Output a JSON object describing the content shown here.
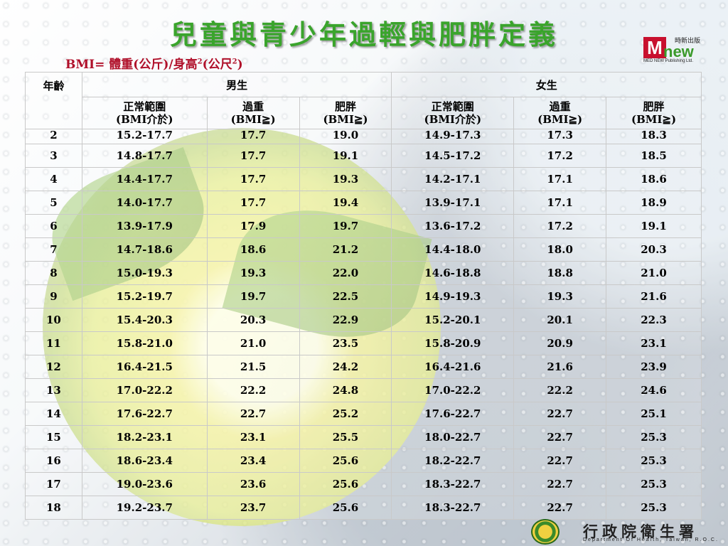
{
  "title": "兒童與青少年過輕與肥胖定義",
  "formula": {
    "text": "BMI= 體重(公斤)/身高",
    "sup1": "2",
    "mid": "(公尺",
    "sup2": "2",
    "end": ")"
  },
  "logo": {
    "letter": "M",
    "word": "new",
    "cn": "時新出版",
    "en": "MED NEW  Publishing Ltd."
  },
  "table": {
    "age_header": "年齡",
    "boys_header": "男生",
    "girls_header": "女生",
    "subheaders": [
      {
        "line1": "正常範圍",
        "line2": "(BMI介於)"
      },
      {
        "line1": "過重",
        "line2": "(BMI≧)"
      },
      {
        "line1": "肥胖",
        "line2": "(BMI≧)"
      },
      {
        "line1": "正常範圍",
        "line2": "(BMI介於)"
      },
      {
        "line1": "過重",
        "line2": "(BMI≧)"
      },
      {
        "line1": "肥胖",
        "line2": "(BMI≧)"
      }
    ],
    "rows": [
      [
        "2",
        "15.2-17.7",
        "17.7",
        "19.0",
        "14.9-17.3",
        "17.3",
        "18.3"
      ],
      [
        "3",
        "14.8-17.7",
        "17.7",
        "19.1",
        "14.5-17.2",
        "17.2",
        "18.5"
      ],
      [
        "4",
        "14.4-17.7",
        "17.7",
        "19.3",
        "14.2-17.1",
        "17.1",
        "18.6"
      ],
      [
        "5",
        "14.0-17.7",
        "17.7",
        "19.4",
        "13.9-17.1",
        "17.1",
        "18.9"
      ],
      [
        "6",
        "13.9-17.9",
        "17.9",
        "19.7",
        "13.6-17.2",
        "17.2",
        "19.1"
      ],
      [
        "7",
        "14.7-18.6",
        "18.6",
        "21.2",
        "14.4-18.0",
        "18.0",
        "20.3"
      ],
      [
        "8",
        "15.0-19.3",
        "19.3",
        "22.0",
        "14.6-18.8",
        "18.8",
        "21.0"
      ],
      [
        "9",
        "15.2-19.7",
        "19.7",
        "22.5",
        "14.9-19.3",
        "19.3",
        "21.6"
      ],
      [
        "10",
        "15.4-20.3",
        "20.3",
        "22.9",
        "15.2-20.1",
        "20.1",
        "22.3"
      ],
      [
        "11",
        "15.8-21.0",
        "21.0",
        "23.5",
        "15.8-20.9",
        "20.9",
        "23.1"
      ],
      [
        "12",
        "16.4-21.5",
        "21.5",
        "24.2",
        "16.4-21.6",
        "21.6",
        "23.9"
      ],
      [
        "13",
        "17.0-22.2",
        "22.2",
        "24.8",
        "17.0-22.2",
        "22.2",
        "24.6"
      ],
      [
        "14",
        "17.6-22.7",
        "22.7",
        "25.2",
        "17.6-22.7",
        "22.7",
        "25.1"
      ],
      [
        "15",
        "18.2-23.1",
        "23.1",
        "25.5",
        "18.0-22.7",
        "22.7",
        "25.3"
      ],
      [
        "16",
        "18.6-23.4",
        "23.4",
        "25.6",
        "18.2-22.7",
        "22.7",
        "25.3"
      ],
      [
        "17",
        "19.0-23.6",
        "23.6",
        "25.6",
        "18.3-22.7",
        "22.7",
        "25.3"
      ],
      [
        "18",
        "19.2-23.7",
        "23.7",
        "25.6",
        "18.3-22.7",
        "22.7",
        "25.3"
      ]
    ]
  },
  "footer": {
    "name": "行政院衛生署",
    "en": "Department Of Health, Taiwan, R.O.C."
  }
}
